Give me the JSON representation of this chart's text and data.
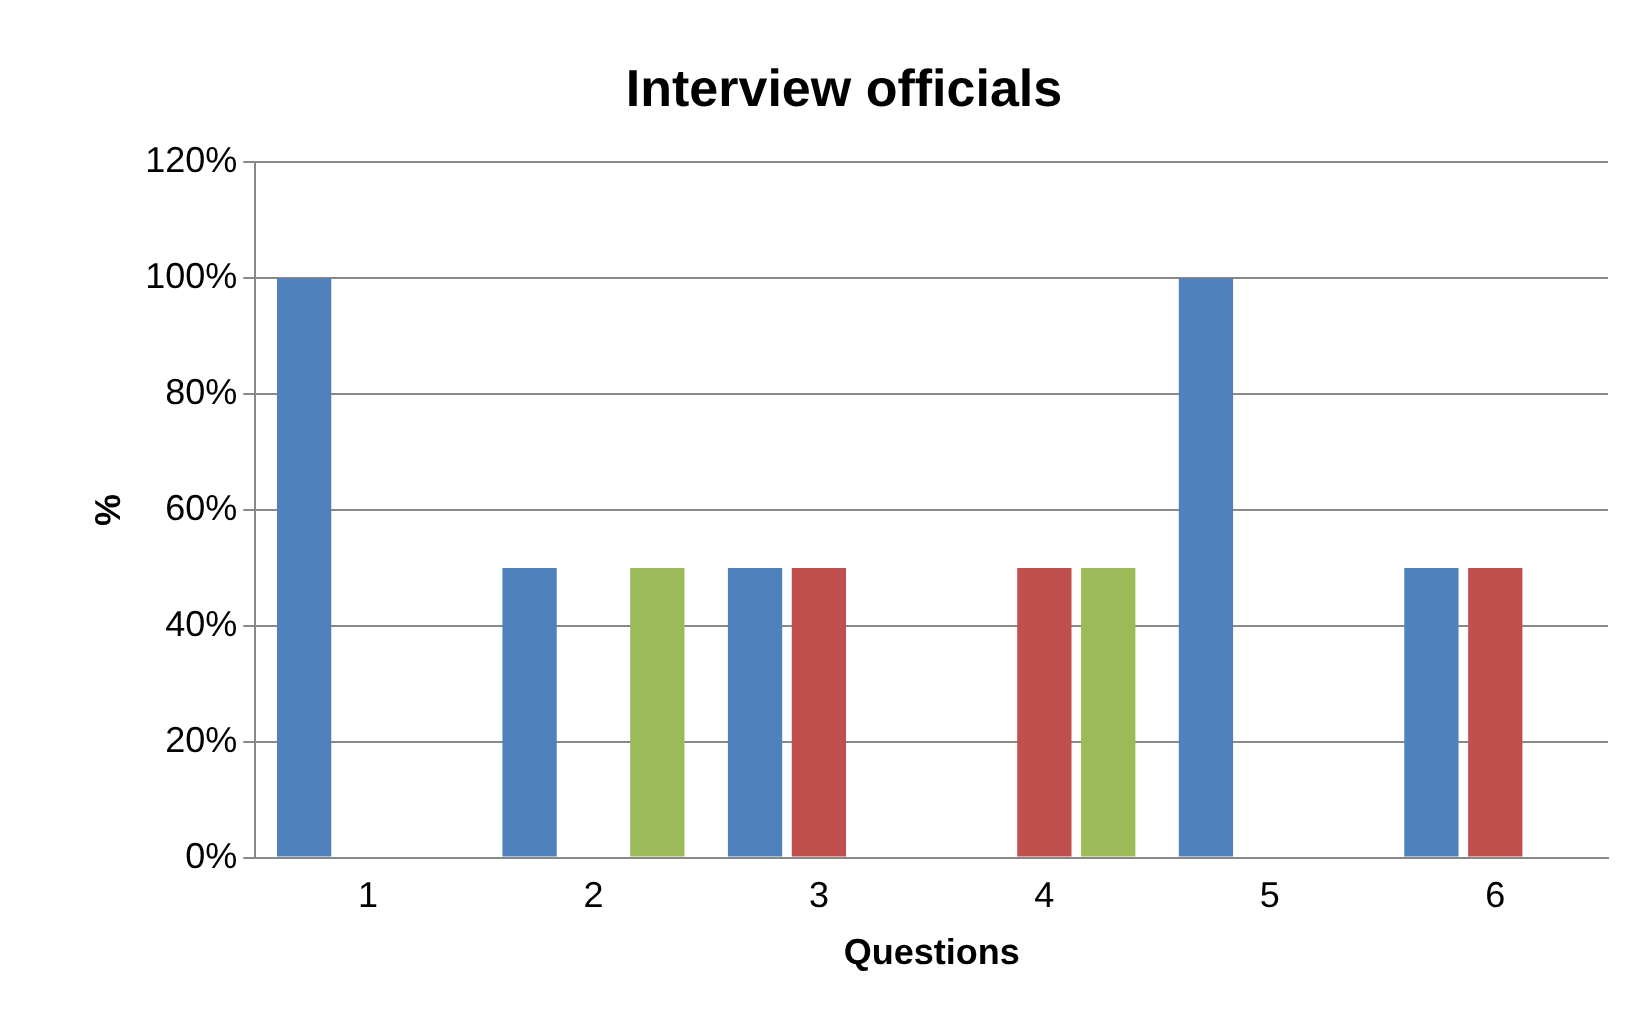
{
  "chart_data": {
    "type": "bar",
    "title": "Interview officials",
    "xlabel": "Questions",
    "ylabel": "%",
    "categories": [
      "1",
      "2",
      "3",
      "4",
      "5",
      "6"
    ],
    "series": [
      {
        "color": "#4f81bd",
        "values": [
          100,
          50,
          50,
          0,
          100,
          50
        ]
      },
      {
        "color": "#c0504d",
        "values": [
          0,
          0,
          50,
          50,
          0,
          50
        ]
      },
      {
        "color": "#9bbb59",
        "values": [
          0,
          50,
          0,
          50,
          0,
          0
        ]
      }
    ],
    "ylim": [
      0,
      120
    ],
    "yticks": [
      {
        "value": 0,
        "label": "0%"
      },
      {
        "value": 20,
        "label": "20%"
      },
      {
        "value": 40,
        "label": "40%"
      },
      {
        "value": 60,
        "label": "60%"
      },
      {
        "value": 80,
        "label": "80%"
      },
      {
        "value": 100,
        "label": "100%"
      },
      {
        "value": 120,
        "label": "120%"
      }
    ],
    "grid": "y",
    "legend": false
  }
}
